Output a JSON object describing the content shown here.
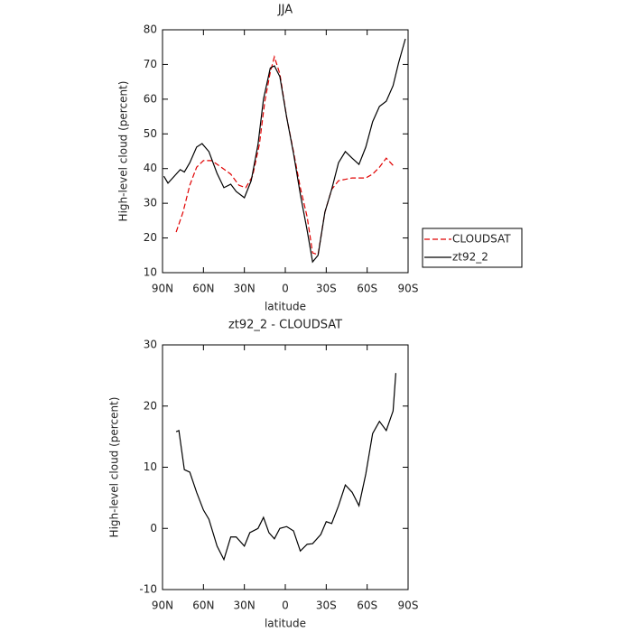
{
  "chart_data": [
    {
      "type": "line",
      "title": "JJA",
      "xlabel": "latitude",
      "ylabel": "High-level cloud (percent)",
      "xlim": [
        90,
        -90
      ],
      "ylim": [
        10,
        80
      ],
      "xticks": [
        {
          "value": 90,
          "label": "90N"
        },
        {
          "value": 60,
          "label": "60N"
        },
        {
          "value": 30,
          "label": "30N"
        },
        0,
        {
          "value": -30,
          "label": "30S"
        },
        {
          "value": -60,
          "label": "60S"
        },
        {
          "value": -90,
          "label": "90S"
        }
      ],
      "yticks": [
        10,
        20,
        30,
        40,
        50,
        60,
        70,
        80
      ],
      "legend": "right",
      "series": [
        {
          "name": "CLOUDSAT",
          "color": "#e00000",
          "dash": true,
          "x": [
            80,
            75,
            70,
            65,
            60,
            54,
            47,
            40,
            34,
            29,
            24,
            19,
            15,
            11,
            8,
            4,
            -1,
            -6,
            -11,
            -16,
            -20,
            -24,
            -29,
            -34,
            -39,
            -49,
            -59,
            -64,
            -69,
            -74,
            -79
          ],
          "values": [
            21.7,
            27.4,
            35.2,
            40.4,
            42.3,
            42.3,
            40.4,
            38.4,
            35.2,
            34.5,
            37.8,
            47,
            59.4,
            67.8,
            72.2,
            67.3,
            54.8,
            44.9,
            34.5,
            26.1,
            15.7,
            15.2,
            27.4,
            34,
            36.5,
            37.3,
            37.3,
            38.4,
            40.4,
            43,
            40.9
          ]
        },
        {
          "name": "zt92_2",
          "color": "#000000",
          "dash": false,
          "x": [
            89,
            86,
            80,
            77,
            74,
            70,
            65,
            61,
            56,
            50,
            45,
            40,
            36,
            30,
            25,
            20,
            16,
            11,
            8,
            4,
            -1,
            -6,
            -11,
            -16,
            -20,
            -24,
            -29,
            -34,
            -39,
            -44,
            -49,
            -54,
            -59,
            -64,
            -69,
            -74,
            -79,
            -83,
            -88
          ],
          "values": [
            37.8,
            35.8,
            38.4,
            39.7,
            39,
            41.7,
            46.2,
            47.2,
            44.9,
            38.6,
            34.5,
            35.5,
            33.4,
            31.6,
            36.5,
            47,
            60,
            69,
            69.6,
            66.5,
            54.8,
            44.4,
            32.6,
            22.2,
            13.1,
            15,
            27.4,
            34,
            41.7,
            44.9,
            43,
            41.2,
            46.2,
            53.5,
            57.9,
            59.4,
            63.9,
            70.4,
            77.4
          ]
        }
      ]
    },
    {
      "type": "line",
      "title": "zt92_2 - CLOUDSAT",
      "xlabel": "latitude",
      "ylabel": "High-level cloud (percent)",
      "xlim": [
        90,
        -90
      ],
      "ylim": [
        -10,
        30
      ],
      "xticks": [
        {
          "value": 90,
          "label": "90N"
        },
        {
          "value": 60,
          "label": "60N"
        },
        {
          "value": 30,
          "label": "30N"
        },
        0,
        {
          "value": -30,
          "label": "30S"
        },
        {
          "value": -60,
          "label": "60S"
        },
        {
          "value": -90,
          "label": "90S"
        }
      ],
      "yticks": [
        -10,
        0,
        10,
        20,
        30
      ],
      "color": "#000000",
      "x": [
        80,
        78,
        74,
        70,
        65,
        60,
        56,
        50,
        45,
        40,
        36,
        30,
        26,
        20,
        16,
        12,
        8,
        4,
        -1,
        -6,
        -11,
        -16,
        -20,
        -26,
        -30,
        -34,
        -39,
        -44,
        -49,
        -54,
        -59,
        -64,
        -69,
        -74,
        -79,
        -81
      ],
      "values": [
        15.8,
        16,
        9.6,
        9.2,
        5.9,
        3,
        1.5,
        -2.9,
        -5.1,
        -1.4,
        -1.4,
        -2.9,
        -0.7,
        0,
        1.8,
        -0.7,
        -1.7,
        0,
        0.3,
        -0.4,
        -3.7,
        -2.6,
        -2.5,
        -1,
        1.1,
        0.8,
        3.7,
        7.1,
        5.9,
        3.7,
        8.9,
        15.5,
        17.5,
        16,
        19.2,
        25.4
      ]
    }
  ]
}
